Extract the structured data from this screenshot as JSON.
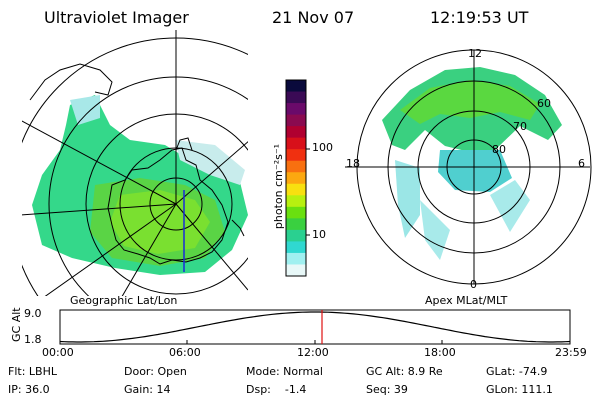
{
  "header": {
    "instrument": "Ultraviolet Imager",
    "date": "21 Nov 07",
    "time": "12:19:53 UT"
  },
  "geo_panel": {
    "label": "Geographic Lat/Lon"
  },
  "colorbar": {
    "unit_label": "photon cm⁻²s⁻¹",
    "ticks": [
      "100",
      "10"
    ],
    "colors": [
      "#0a0a3c",
      "#3a0a55",
      "#6a0a6a",
      "#8a0a50",
      "#b00030",
      "#d8101a",
      "#f03010",
      "#f87010",
      "#fca810",
      "#f8e010",
      "#b8f010",
      "#6ae010",
      "#3ad040",
      "#2ad090",
      "#30d8d0",
      "#a0f0f0",
      "#e8f8f8"
    ]
  },
  "apex_panel": {
    "label": "Apex MLat/MLT",
    "mlt_labels": {
      "top": "12",
      "left": "18",
      "right": "6",
      "bottom": "0"
    },
    "mlat_labels": [
      "60",
      "70",
      "80"
    ]
  },
  "gc_plot": {
    "ylabel": "GC Alt",
    "yticks": [
      "9.0",
      "1.8"
    ],
    "xticks": [
      "00:00",
      "06:00",
      "12:00",
      "18:00",
      "23:59"
    ]
  },
  "info": {
    "row1": {
      "flt": "Flt: LBHL",
      "door": "Door: Open",
      "mode": "Mode: Normal",
      "gcalt": "GC Alt: 8.9 Re",
      "glat": "GLat: -74.9"
    },
    "row2": {
      "ip": "IP: 36.0",
      "gain": "Gain: 14",
      "dsp": "Dsp:    -1.4",
      "seq": "Seq: 39",
      "glon": "GLon: 111.1"
    }
  }
}
